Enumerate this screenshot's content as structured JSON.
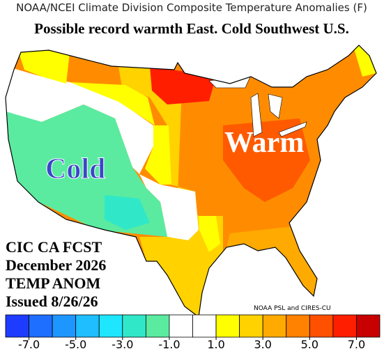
{
  "header": "NOAA/NCEI Climate Division Composite Temperature Anomalies (F)",
  "title": "Possible record warmth East. Cold Southwest U.S.",
  "map": {
    "labels": [
      "Cold",
      "Warm"
    ]
  },
  "annotation": {
    "lines": [
      "CIC CA FCST",
      "December 2026",
      "TEMP ANOM",
      "Issued 8/26/26"
    ]
  },
  "credit": "NOAA PSL and CIRES-CU",
  "colorbar": {
    "xlim": [
      -8,
      8
    ],
    "bins": [
      -8,
      -7,
      -6,
      -5,
      -4,
      -3,
      -2,
      -1,
      0,
      1,
      2,
      3,
      4,
      5,
      6,
      7,
      8
    ],
    "colors": [
      "#1e3cff",
      "#1e6eff",
      "#1e96ff",
      "#1ebeff",
      "#1ee6ff",
      "#30e8c8",
      "#5aeba0",
      "#ffffff",
      "#ffffff",
      "#ffff00",
      "#ffd200",
      "#ffaa00",
      "#ff8200",
      "#ff5000",
      "#ff1e00",
      "#c80000"
    ],
    "ticks": [
      {
        "value": -7,
        "label": "-7.0"
      },
      {
        "value": -5,
        "label": "-5.0"
      },
      {
        "value": -3,
        "label": "-3.0"
      },
      {
        "value": -1,
        "label": "-1.0"
      },
      {
        "value": 1,
        "label": "1.0"
      },
      {
        "value": 3,
        "label": "3.0"
      },
      {
        "value": 5,
        "label": "5.0"
      },
      {
        "value": 7,
        "label": "7.0"
      }
    ]
  }
}
